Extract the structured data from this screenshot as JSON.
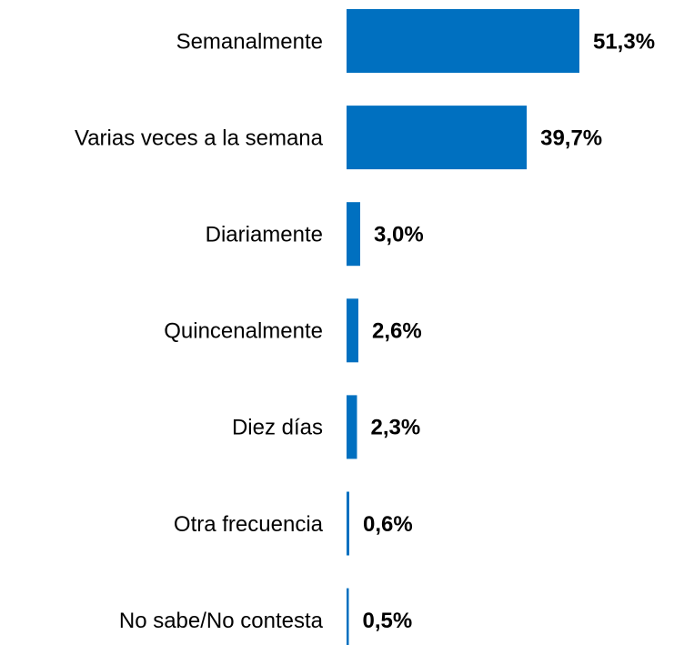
{
  "chart_data": {
    "type": "bar",
    "orientation": "horizontal",
    "categories": [
      "Semanalmente",
      "Varias veces a la semana",
      "Diariamente",
      "Quincenalmente",
      "Diez días",
      "Otra frecuencia",
      "No sabe/No contesta"
    ],
    "values": [
      51.3,
      39.7,
      3.0,
      2.6,
      2.3,
      0.6,
      0.5
    ],
    "value_labels": [
      "51,3%",
      "39,7%",
      "3,0%",
      "2,6%",
      "2,3%",
      "0,6%",
      "0,5%"
    ],
    "color": "#0070c0"
  }
}
